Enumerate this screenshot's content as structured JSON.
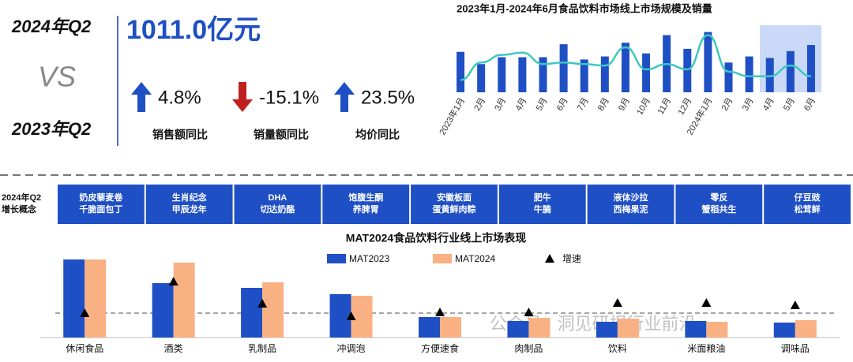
{
  "header": {
    "current": "2024年Q2",
    "vs": "VS",
    "previous": "2023年Q2",
    "total": "1011.0亿元"
  },
  "kpis": [
    {
      "value": "4.8%",
      "label": "销售额同比",
      "direction": "up"
    },
    {
      "value": "-15.1%",
      "label": "销量额同比",
      "direction": "down"
    },
    {
      "value": "23.5%",
      "label": "均价同比",
      "direction": "up"
    }
  ],
  "concepts": {
    "title": "2024年Q2 增长概念",
    "items": [
      [
        "奶皮藜麦卷",
        "千脆面包丁"
      ],
      [
        "生肖纪念",
        "甲辰龙年"
      ],
      [
        "DHA",
        "切达奶酪"
      ],
      [
        "饱腹生酮",
        "养脾胃"
      ],
      [
        "安徽板面",
        "蛋黄鲜肉粽"
      ],
      [
        "肥牛",
        "牛腩"
      ],
      [
        "液体沙拉",
        "西梅果泥"
      ],
      [
        "零反",
        "蟹稻共生"
      ],
      [
        "仔豆豉",
        "松茸鲜"
      ]
    ]
  },
  "watermark": "公众号 · 洞见研报行业前沿",
  "chart_data": [
    {
      "type": "bar",
      "title": "2023年1月-2024年6月食品饮料市场线上市场规模及销量",
      "categories": [
        "2023年1月",
        "2月",
        "3月",
        "4月",
        "5月",
        "6月",
        "7月",
        "8月",
        "9月",
        "10月",
        "11月",
        "12月",
        "2024年1月",
        "2月",
        "3月",
        "4月",
        "5月",
        "6月"
      ],
      "ylim": [
        0,
        90
      ],
      "series": [
        {
          "type": "bar",
          "color": "#1f4fc4",
          "values": [
            53,
            37,
            46,
            46,
            46,
            63,
            43,
            47,
            65,
            51,
            75,
            57,
            79,
            39,
            47,
            45,
            54,
            62
          ]
        },
        {
          "type": "line",
          "color": "#3cc8c0",
          "values": [
            16,
            39,
            49,
            52,
            37,
            39,
            37,
            35,
            59,
            30,
            37,
            30,
            75,
            27,
            21,
            21,
            35,
            21
          ]
        }
      ]
    },
    {
      "type": "bar",
      "title": "MAT2024食品饮料行业线上市场表现",
      "categories": [
        "休闲食品",
        "酒类",
        "乳制品",
        "冲调泡",
        "方便速食",
        "肉制品",
        "饮料",
        "米面粮油",
        "调味品"
      ],
      "ylim": [
        0,
        108
      ],
      "y2lim": [
        -31,
        77
      ],
      "series": [
        {
          "name": "MAT2023",
          "type": "bar",
          "color": "#1f4fc4",
          "values": [
            99,
            69,
            63,
            55,
            26,
            21,
            20,
            21,
            19
          ]
        },
        {
          "name": "MAT2024",
          "type": "bar",
          "color": "#f9b183",
          "values": [
            99,
            95,
            70,
            53,
            26,
            25,
            24,
            20,
            22
          ]
        },
        {
          "name": "增速",
          "type": "marker",
          "axis": "y2",
          "color": "#000000",
          "values": [
            0,
            40,
            12,
            -4,
            1,
            1,
            13,
            13,
            10
          ]
        }
      ]
    }
  ]
}
